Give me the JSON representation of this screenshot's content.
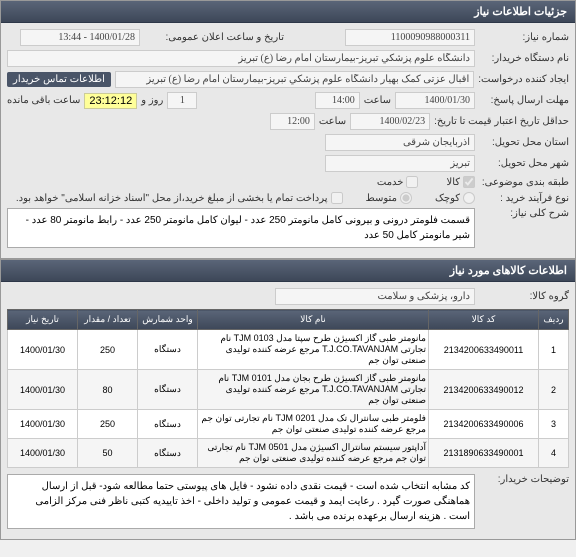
{
  "panel1": {
    "title": "جزئیات اطلاعات نیاز",
    "need_number_label": "شماره نیاز:",
    "need_number": "1100090988000311",
    "announce_label": "تاریخ و ساعت اعلان عمومی:",
    "announce_value": "1400/01/28 - 13:44",
    "org_label": "نام دستگاه خریدار:",
    "org_value": "دانشگاه علوم پزشکي تبریز-بیمارستان امام رضا (ع) تبریز",
    "creator_label": "ایجاد کننده درخواست:",
    "creator_value": "اقبال عزتی کمک بهیار دانشگاه علوم پزشکي تبریز-بیمارستان امام رضا (ع) تبریز",
    "contact_badge": "اطلاعات تماس خریدار",
    "deadline_label": "مهلت ارسال پاسخ:",
    "deadline_date": "1400/01/30",
    "time_label": "ساعت",
    "deadline_time": "14:00",
    "day_count": "1",
    "day_label": "روز و",
    "remaining_time": "23:12:12",
    "remaining_label": "ساعت باقی مانده",
    "credit_label": "حداقل تاریخ اعتبار قیمت تا تاریخ:",
    "credit_date": "1400/02/23",
    "credit_time": "12:00",
    "province_label": "استان محل تحویل:",
    "province_value": "آذربایجان شرقی",
    "city_label": "شهر محل تحویل:",
    "city_value": "تبریز",
    "category_label": "طبقه بندی موضوعی:",
    "cat_goods": "کالا",
    "cat_service": "خدمت",
    "process_label": "نوع فرآیند خرید :",
    "process_small": "کوچک",
    "process_medium": "متوسط",
    "process_note": "پرداخت تمام یا بخشی از مبلغ خرید،از محل \"اسناد خزانه اسلامی\" خواهد بود.",
    "desc_label": "شرح کلی نیاز:",
    "desc_text": "قسمت فلومتر درونی و بیرونی کامل مانومتر 250 عدد - لیوان کامل مانومتر 250 عدد - رابط مانومتر 80 عدد - شیر مانومتر کامل 50 عدد"
  },
  "panel2": {
    "title": "اطلاعات کالاهای مورد نیاز",
    "group_label": "گروه کالا:",
    "group_value": "دارو، پزشکی و سلامت",
    "columns": {
      "row": "ردیف",
      "code": "کد کالا",
      "name": "نام کالا",
      "unit": "واحد شمارش",
      "qty": "تعداد / مقدار",
      "date": "تاریخ نیاز"
    },
    "rows": [
      {
        "n": "1",
        "code": "2134200633490011",
        "name": "مانومتر طبی گاز اکسیژن طرح سپتا مدل TJM 0103 نام تجارتی T.J.CO.TAVANJAM مرجع عرضه کننده تولیدی صنعتی توان جم",
        "unit": "دستگاه",
        "qty": "250",
        "date": "1400/01/30"
      },
      {
        "n": "2",
        "code": "2134200633490012",
        "name": "مانومتر طبی گاز اکسیژن طرح بجان مدل TJM 0101 نام تجارتی T.J.CO.TAVANJAM مرجع عرضه کننده تولیدی صنعتی توان جم",
        "unit": "دستگاه",
        "qty": "80",
        "date": "1400/01/30"
      },
      {
        "n": "3",
        "code": "2134200633490006",
        "name": "فلومتر طبی سانترال تک مدل TJM 0201 نام تجارتی توان جم مرجع عرضه کننده تولیدی صنعتی توان جم",
        "unit": "دستگاه",
        "qty": "250",
        "date": "1400/01/30"
      },
      {
        "n": "4",
        "code": "2131890633490001",
        "name": "آداپتور سیستم سانترال اکسیژن مدل TJM 0501 نام تجارتی توان جم مرجع عرضه کننده تولیدی صنعتی توان جم",
        "unit": "دستگاه",
        "qty": "50",
        "date": "1400/01/30"
      }
    ],
    "buyer_note_label": "توضیحات خریدار:",
    "buyer_note": "کد مشابه انتخاب شده است - قیمت نقدی داده نشود - فایل های پیوستی حتما مطالعه شود- قبل از ارسال هماهنگی صورت گیرد . رعایت ایمد و قیمت عمومی و تولید داخلی - اخذ تاییدیه کتبی ناظر فنی مرکز الزامی است . هزینه ارسال برعهده برنده می باشد ."
  }
}
